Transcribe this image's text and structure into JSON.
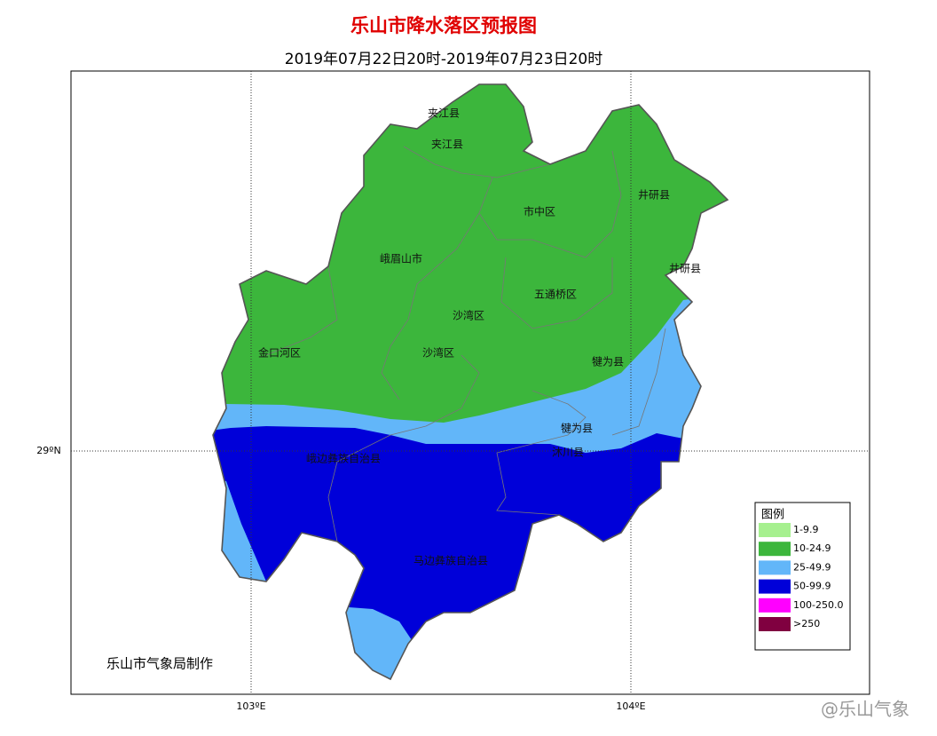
{
  "header": {
    "title": "乐山市降水落区预报图",
    "subtitle": "2019年07月22日20时-2019年07月23日20时"
  },
  "axes": {
    "lat": "29ºN",
    "lon": [
      "103ºE",
      "104ºE"
    ]
  },
  "places": [
    "夹江县",
    "夹江县",
    "井研县",
    "井研县",
    "市中区",
    "峨眉山市",
    "五通桥区",
    "沙湾区",
    "沙湾区",
    "金口河区",
    "犍为县",
    "犍为县",
    "沐川县",
    "峨边彝族自治县",
    "马边彝族自治县"
  ],
  "legend": {
    "title": "图例",
    "items": [
      {
        "label": "1-9.9",
        "color": "#a6f08f"
      },
      {
        "label": "10-24.9",
        "color": "#3cb63c"
      },
      {
        "label": "25-49.9",
        "color": "#62b6f9"
      },
      {
        "label": "50-99.9",
        "color": "#0000d9"
      },
      {
        "label": "100-250.0",
        "color": "#ff00ff"
      },
      {
        "label": ">250",
        "color": "#800040"
      }
    ]
  },
  "credit": "乐山市气象局制作",
  "watermark": "@乐山气象"
}
